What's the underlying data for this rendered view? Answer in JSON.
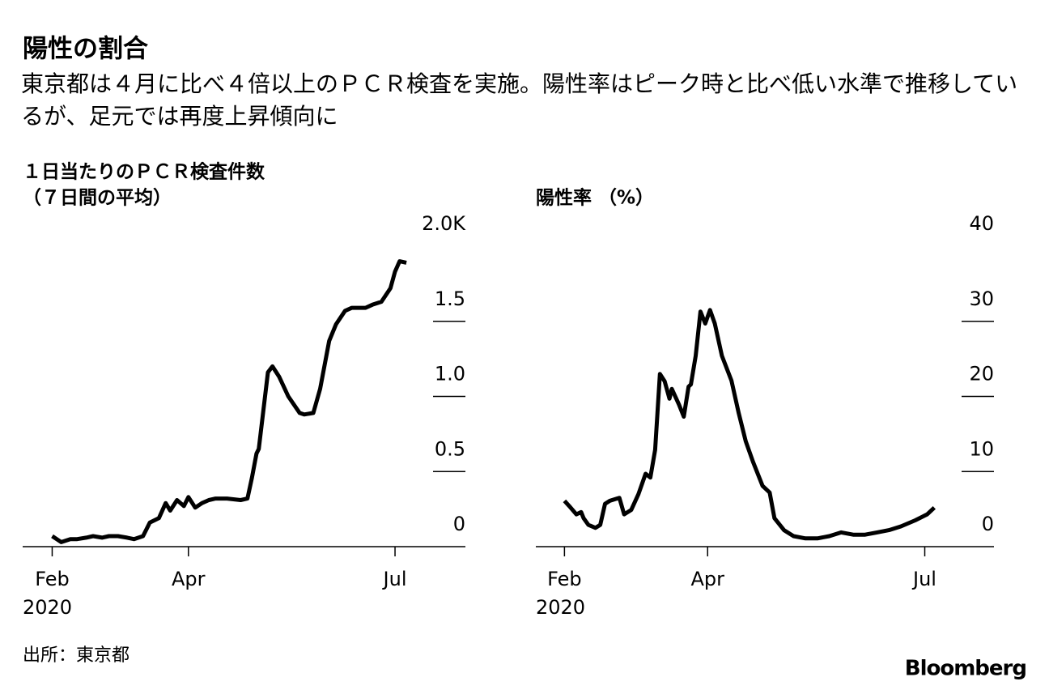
{
  "title": "陽性の割合",
  "subtitle": "東京都は４月に比べ４倍以上のＰＣＲ検査を実施。陽性率はピーク時と比べ低い水準で推移しているが、足元では再度上昇傾向に",
  "source": "出所：東京都",
  "brand": "Bloomberg",
  "chart_data": [
    {
      "type": "line",
      "title": "１日当たりのＰＣＲ検査件数",
      "subtitle": "（７日間の平均）",
      "year_label": "2020",
      "x": [
        32,
        36,
        40,
        43,
        47,
        50,
        54,
        57,
        61,
        65,
        68,
        72,
        75,
        79,
        82,
        84,
        87,
        90,
        92,
        95,
        98,
        101,
        104,
        109,
        115,
        118,
        120,
        122,
        123,
        127,
        129,
        132,
        136,
        141,
        143,
        147,
        150,
        154,
        157,
        161,
        164,
        170,
        173,
        177,
        181,
        183,
        185,
        188
      ],
      "series": [
        {
          "name": "PCR",
          "color": "#000000",
          "values": [
            0.07,
            0.03,
            0.05,
            0.05,
            0.06,
            0.07,
            0.06,
            0.07,
            0.07,
            0.06,
            0.05,
            0.07,
            0.16,
            0.19,
            0.29,
            0.24,
            0.31,
            0.27,
            0.33,
            0.26,
            0.29,
            0.31,
            0.32,
            0.32,
            0.31,
            0.32,
            0.46,
            0.62,
            0.65,
            1.16,
            1.2,
            1.13,
            1.0,
            0.89,
            0.88,
            0.89,
            1.05,
            1.37,
            1.48,
            1.57,
            1.59,
            1.59,
            1.61,
            1.63,
            1.72,
            1.83,
            1.9,
            1.89
          ]
        }
      ],
      "xlim": [
        19,
        214
      ],
      "xticks": [
        {
          "value": 32,
          "label": "Feb"
        },
        {
          "value": 92,
          "label": "Apr"
        },
        {
          "value": 183,
          "label": "Jul"
        }
      ],
      "ylim": [
        0,
        2
      ],
      "yticks": [
        0,
        {
          "value": 0.5,
          "label": "0.5"
        },
        {
          "value": 1,
          "label": "1.0"
        },
        1.5,
        {
          "value": 2,
          "label": "2.0K"
        }
      ]
    },
    {
      "type": "line",
      "title": "陽性率 （%）",
      "year_label": "2020",
      "x": [
        32,
        34,
        37,
        39,
        40,
        42,
        45,
        47,
        49,
        51,
        55,
        57,
        60,
        63,
        66,
        68,
        70,
        72,
        74,
        76,
        77,
        80,
        82,
        84,
        85,
        87,
        89,
        91,
        93,
        95,
        98,
        102,
        105,
        108,
        111,
        115,
        118,
        120,
        124,
        128,
        133,
        138,
        143,
        148,
        153,
        158,
        163,
        168,
        173,
        179,
        184,
        187
      ],
      "series": [
        {
          "name": "陽性率",
          "color": "#000000",
          "values": [
            6.1,
            5.4,
            4.3,
            4.6,
            3.8,
            2.9,
            2.5,
            2.9,
            5.7,
            6.1,
            6.5,
            4.3,
            4.9,
            7.0,
            9.7,
            9.2,
            12.9,
            23,
            22,
            19.7,
            21,
            18.9,
            17.3,
            21.3,
            21.6,
            25.4,
            31.3,
            29.7,
            31.5,
            29.7,
            25.4,
            22.1,
            17.8,
            14,
            11.3,
            8.1,
            7.2,
            3.8,
            2.2,
            1.4,
            1.1,
            1.1,
            1.4,
            1.9,
            1.6,
            1.6,
            1.9,
            2.2,
            2.7,
            3.5,
            4.3,
            5.2
          ]
        }
      ],
      "xlim": [
        20,
        212
      ],
      "xticks": [
        {
          "value": 32,
          "label": "Feb"
        },
        {
          "value": 92,
          "label": "Apr"
        },
        {
          "value": 183,
          "label": "Jul"
        }
      ],
      "ylim": [
        0,
        40
      ],
      "yticks": [
        0,
        10,
        20,
        30,
        40
      ]
    }
  ]
}
